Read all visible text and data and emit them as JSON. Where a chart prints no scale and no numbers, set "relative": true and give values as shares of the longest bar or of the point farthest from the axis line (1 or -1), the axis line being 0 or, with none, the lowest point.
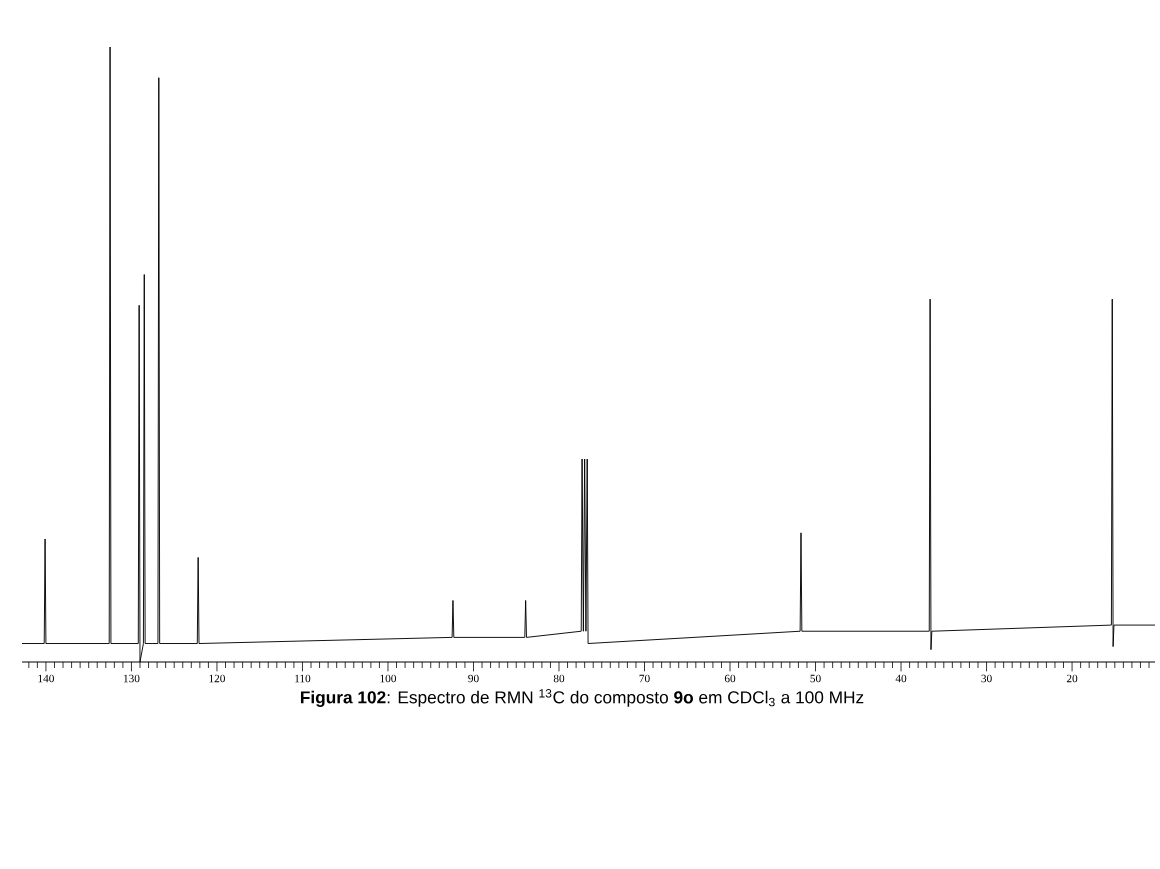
{
  "chart_data": {
    "type": "line",
    "relative": true,
    "color": "#000000",
    "x": [
      142.8,
      140.2,
      140.1,
      140.0,
      132.6,
      132.5,
      132.4,
      129.2,
      129.1,
      129.0,
      128.6,
      128.5,
      128.4,
      126.9,
      126.8,
      126.7,
      122.3,
      122.2,
      122.1,
      92.5,
      92.4,
      92.3,
      84.0,
      83.9,
      83.8,
      77.4,
      77.3,
      77.15,
      77.0,
      76.85,
      76.7,
      76.6,
      51.8,
      51.7,
      51.6,
      36.7,
      36.6,
      36.5,
      36.4,
      15.4,
      15.3,
      15.2,
      15.1,
      10.3
    ],
    "values": [
      0.03,
      0.03,
      0.2,
      0.03,
      0.03,
      1,
      0.03,
      0.03,
      0.58,
      0.0,
      0.03,
      0.63,
      0.03,
      0.03,
      0.95,
      0.03,
      0.03,
      0.17,
      0.03,
      0.04,
      0.1,
      0.04,
      0.04,
      0.1,
      0.04,
      0.05,
      0.33,
      0.05,
      0.33,
      0.05,
      0.33,
      0.03,
      0.05,
      0.21,
      0.05,
      0.05,
      0.59,
      0.02,
      0.05,
      0.06,
      0.59,
      0.025,
      0.06,
      0.06
    ],
    "xlim": [
      142.8,
      10.3
    ],
    "xticks": [
      {
        "value": 142,
        "label": null
      },
      {
        "value": 141,
        "label": null
      },
      140,
      {
        "value": 139,
        "label": null
      },
      {
        "value": 138,
        "label": null
      },
      {
        "value": 137,
        "label": null
      },
      {
        "value": 136,
        "label": null
      },
      {
        "value": 135,
        "label": null
      },
      {
        "value": 134,
        "label": null
      },
      {
        "value": 133,
        "label": null
      },
      {
        "value": 132,
        "label": null
      },
      {
        "value": 131,
        "label": null
      },
      130,
      {
        "value": 129,
        "label": null
      },
      {
        "value": 128,
        "label": null
      },
      {
        "value": 127,
        "label": null
      },
      {
        "value": 126,
        "label": null
      },
      {
        "value": 125,
        "label": null
      },
      {
        "value": 124,
        "label": null
      },
      {
        "value": 123,
        "label": null
      },
      {
        "value": 122,
        "label": null
      },
      {
        "value": 121,
        "label": null
      },
      120,
      {
        "value": 119,
        "label": null
      },
      {
        "value": 118,
        "label": null
      },
      {
        "value": 117,
        "label": null
      },
      {
        "value": 116,
        "label": null
      },
      {
        "value": 115,
        "label": null
      },
      {
        "value": 114,
        "label": null
      },
      {
        "value": 113,
        "label": null
      },
      {
        "value": 112,
        "label": null
      },
      {
        "value": 111,
        "label": null
      },
      110,
      {
        "value": 109,
        "label": null
      },
      {
        "value": 108,
        "label": null
      },
      {
        "value": 107,
        "label": null
      },
      {
        "value": 106,
        "label": null
      },
      {
        "value": 105,
        "label": null
      },
      {
        "value": 104,
        "label": null
      },
      {
        "value": 103,
        "label": null
      },
      {
        "value": 102,
        "label": null
      },
      {
        "value": 101,
        "label": null
      },
      100,
      {
        "value": 99,
        "label": null
      },
      {
        "value": 98,
        "label": null
      },
      {
        "value": 97,
        "label": null
      },
      {
        "value": 96,
        "label": null
      },
      {
        "value": 95,
        "label": null
      },
      {
        "value": 94,
        "label": null
      },
      {
        "value": 93,
        "label": null
      },
      {
        "value": 92,
        "label": null
      },
      {
        "value": 91,
        "label": null
      },
      90,
      {
        "value": 89,
        "label": null
      },
      {
        "value": 88,
        "label": null
      },
      {
        "value": 87,
        "label": null
      },
      {
        "value": 86,
        "label": null
      },
      {
        "value": 85,
        "label": null
      },
      {
        "value": 84,
        "label": null
      },
      {
        "value": 83,
        "label": null
      },
      {
        "value": 82,
        "label": null
      },
      {
        "value": 81,
        "label": null
      },
      80,
      {
        "value": 79,
        "label": null
      },
      {
        "value": 78,
        "label": null
      },
      {
        "value": 77,
        "label": null
      },
      {
        "value": 76,
        "label": null
      },
      {
        "value": 75,
        "label": null
      },
      {
        "value": 74,
        "label": null
      },
      {
        "value": 73,
        "label": null
      },
      {
        "value": 72,
        "label": null
      },
      {
        "value": 71,
        "label": null
      },
      70,
      {
        "value": 69,
        "label": null
      },
      {
        "value": 68,
        "label": null
      },
      {
        "value": 67,
        "label": null
      },
      {
        "value": 66,
        "label": null
      },
      {
        "value": 65,
        "label": null
      },
      {
        "value": 64,
        "label": null
      },
      {
        "value": 63,
        "label": null
      },
      {
        "value": 62,
        "label": null
      },
      {
        "value": 61,
        "label": null
      },
      60,
      {
        "value": 59,
        "label": null
      },
      {
        "value": 58,
        "label": null
      },
      {
        "value": 57,
        "label": null
      },
      {
        "value": 56,
        "label": null
      },
      {
        "value": 55,
        "label": null
      },
      {
        "value": 54,
        "label": null
      },
      {
        "value": 53,
        "label": null
      },
      {
        "value": 52,
        "label": null
      },
      {
        "value": 51,
        "label": null
      },
      50,
      {
        "value": 49,
        "label": null
      },
      {
        "value": 48,
        "label": null
      },
      {
        "value": 47,
        "label": null
      },
      {
        "value": 46,
        "label": null
      },
      {
        "value": 45,
        "label": null
      },
      {
        "value": 44,
        "label": null
      },
      {
        "value": 43,
        "label": null
      },
      {
        "value": 42,
        "label": null
      },
      {
        "value": 41,
        "label": null
      },
      40,
      {
        "value": 39,
        "label": null
      },
      {
        "value": 38,
        "label": null
      },
      {
        "value": 37,
        "label": null
      },
      {
        "value": 36,
        "label": null
      },
      {
        "value": 35,
        "label": null
      },
      {
        "value": 34,
        "label": null
      },
      {
        "value": 33,
        "label": null
      },
      {
        "value": 32,
        "label": null
      },
      {
        "value": 31,
        "label": null
      },
      30,
      {
        "value": 29,
        "label": null
      },
      {
        "value": 28,
        "label": null
      },
      {
        "value": 27,
        "label": null
      },
      {
        "value": 26,
        "label": null
      },
      {
        "value": 25,
        "label": null
      },
      {
        "value": 24,
        "label": null
      },
      {
        "value": 23,
        "label": null
      },
      {
        "value": 22,
        "label": null
      },
      {
        "value": 21,
        "label": null
      },
      20,
      {
        "value": 19,
        "label": null
      },
      {
        "value": 18,
        "label": null
      },
      {
        "value": 17,
        "label": null
      },
      {
        "value": 16,
        "label": null
      },
      {
        "value": 15,
        "label": null
      },
      {
        "value": 14,
        "label": null
      },
      {
        "value": 13,
        "label": null
      },
      {
        "value": 12,
        "label": null
      },
      {
        "value": 11,
        "label": null
      }
    ],
    "annotations": [
      "**Figura 102**: Espectro de RMN $^{13}$C do composto **9o** em CDCl$_{3}$ a 100 MHz"
    ]
  }
}
